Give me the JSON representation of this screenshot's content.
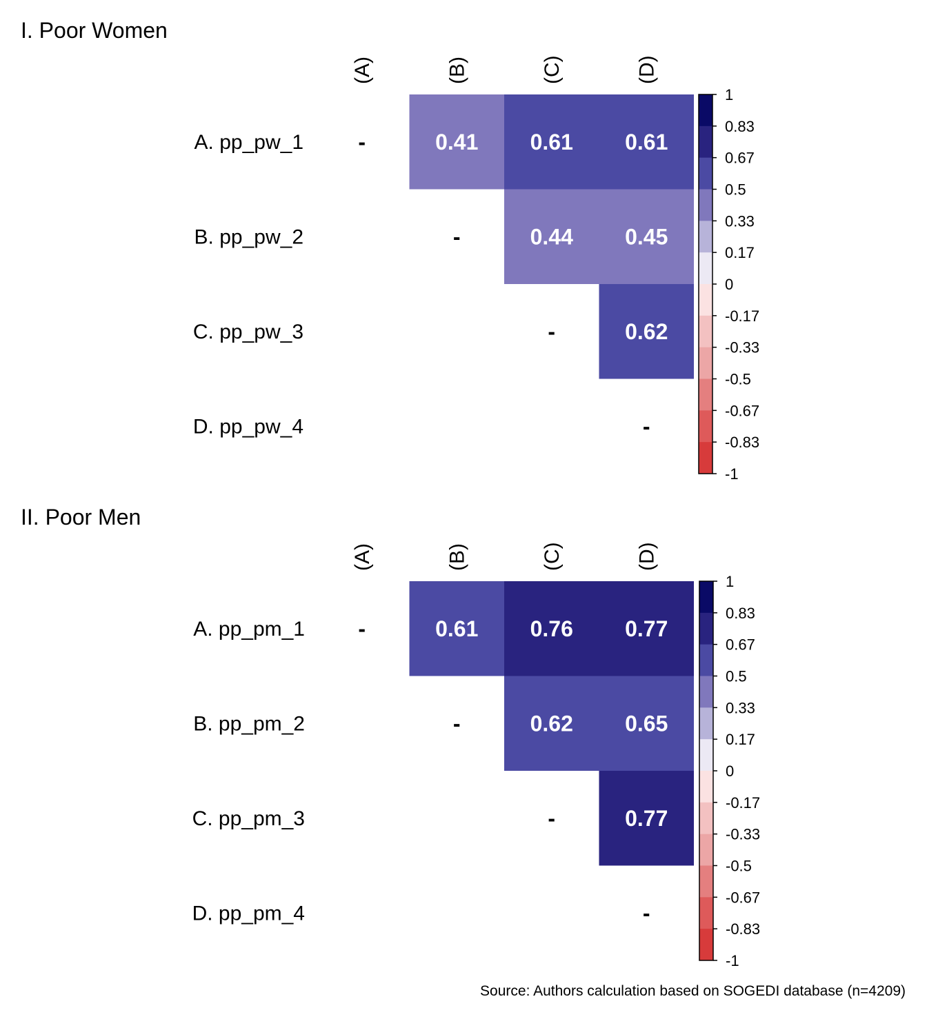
{
  "chart_data": [
    {
      "type": "heatmap",
      "title": "I. Poor Women",
      "row_labels": [
        "A. pp_pw_1",
        "B. pp_pw_2",
        "C. pp_pw_3",
        "D. pp_pw_4"
      ],
      "col_labels": [
        "(A)",
        "(B)",
        "(C)",
        "(D)"
      ],
      "diagonal_marker": "-",
      "matrix": [
        [
          null,
          0.41,
          0.61,
          0.61
        ],
        [
          null,
          null,
          0.44,
          0.45
        ],
        [
          null,
          null,
          null,
          0.62
        ],
        [
          null,
          null,
          null,
          null
        ]
      ],
      "value_labels": [
        [
          "-",
          "0.41",
          "0.61",
          "0.61"
        ],
        [
          "",
          "-",
          "0.44",
          "0.45"
        ],
        [
          "",
          "",
          "-",
          "0.62"
        ],
        [
          "",
          "",
          "",
          "-"
        ]
      ],
      "legend": {
        "range": [
          -1,
          1
        ],
        "ticks": [
          "1",
          "0.83",
          "0.67",
          "0.5",
          "0.33",
          "0.17",
          "0",
          "-0.17",
          "-0.33",
          "-0.5",
          "-0.67",
          "-0.83",
          "-1"
        ]
      }
    },
    {
      "type": "heatmap",
      "title": "II. Poor Men",
      "row_labels": [
        "A. pp_pm_1",
        "B. pp_pm_2",
        "C. pp_pm_3",
        "D. pp_pm_4"
      ],
      "col_labels": [
        "(A)",
        "(B)",
        "(C)",
        "(D)"
      ],
      "diagonal_marker": "-",
      "matrix": [
        [
          null,
          0.61,
          0.76,
          0.77
        ],
        [
          null,
          null,
          0.62,
          0.65
        ],
        [
          null,
          null,
          null,
          0.77
        ],
        [
          null,
          null,
          null,
          null
        ]
      ],
      "value_labels": [
        [
          "-",
          "0.61",
          "0.76",
          "0.77"
        ],
        [
          "",
          "-",
          "0.62",
          "0.65"
        ],
        [
          "",
          "",
          "-",
          "0.77"
        ],
        [
          "",
          "",
          "",
          "-"
        ]
      ],
      "legend": {
        "range": [
          -1,
          1
        ],
        "ticks": [
          "1",
          "0.83",
          "0.67",
          "0.5",
          "0.33",
          "0.17",
          "0",
          "-0.17",
          "-0.33",
          "-0.5",
          "-0.67",
          "-0.83",
          "-1"
        ]
      }
    }
  ],
  "colors": {
    "bins_high_to_low": [
      "#0a0a66",
      "#29237f",
      "#4b4aa3",
      "#8078bc",
      "#b7b3d9",
      "#ece9f4",
      "#ffffff",
      "#fbe2e2",
      "#f3c1c1",
      "#eca6a6",
      "#e47f7f",
      "#de5a5a",
      "#d73b3b"
    ]
  },
  "source_note": "Source: Authors calculation based on SOGEDI database (n=4209)"
}
